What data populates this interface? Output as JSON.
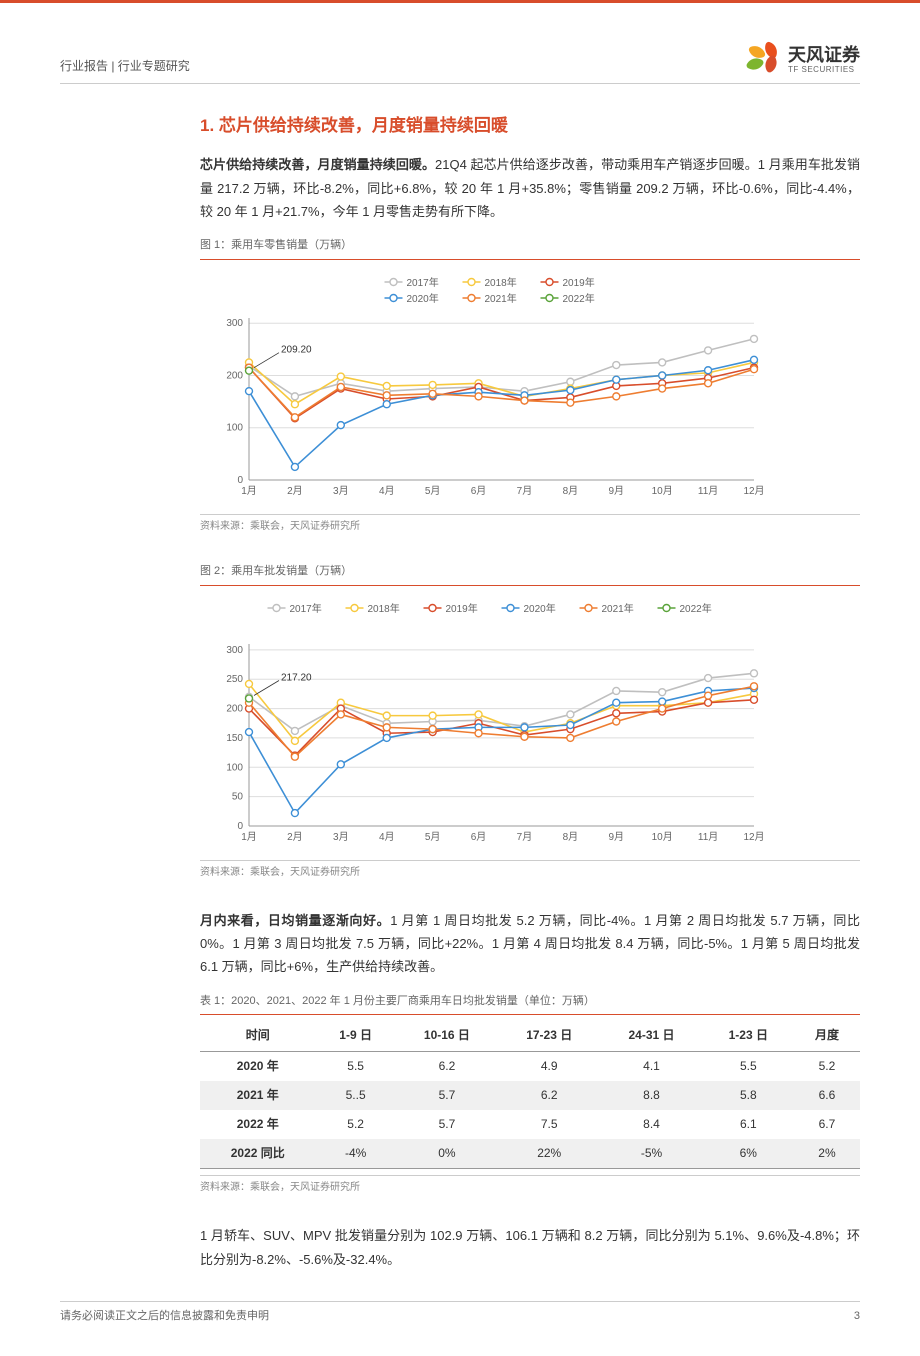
{
  "header": {
    "breadcrumb": "行业报告 | 行业专题研究",
    "logo_cn": "天风证券",
    "logo_en": "TF SECURITIES"
  },
  "section": {
    "title": "1. 芯片供给持续改善，月度销量持续回暖",
    "para1_bold": "芯片供给持续改善，月度销量持续回暖。",
    "para1_rest": "21Q4 起芯片供给逐步改善，带动乘用车产销逐步回暖。1 月乘用车批发销量 217.2 万辆，环比-8.2%，同比+6.8%，较 20 年 1 月+35.8%；零售销量 209.2 万辆，环比-0.6%，同比-4.4%，较 20 年 1 月+21.7%，今年 1 月零售走势有所下降。",
    "para2_bold": "月内来看，日均销量逐渐向好。",
    "para2_rest": "1 月第 1 周日均批发 5.2 万辆，同比-4%。1 月第 2 周日均批发 5.7 万辆，同比 0%。1 月第 3 周日均批发 7.5 万辆，同比+22%。1 月第 4 周日均批发 8.4 万辆，同比-5%。1 月第 5 周日均批发 6.1 万辆，同比+6%，生产供给持续改善。",
    "para3": "1 月轿车、SUV、MPV 批发销量分别为 102.9 万辆、106.1 万辆和 8.2 万辆，同比分别为 5.1%、9.6%及-4.8%；环比分别为-8.2%、-5.6%及-32.4%。"
  },
  "chart1": {
    "caption": "图 1：乘用车零售销量（万辆）",
    "source": "资料来源：乘联会，天风证券研究所",
    "annotation": "209.20",
    "x_labels": [
      "1月",
      "2月",
      "3月",
      "4月",
      "5月",
      "6月",
      "7月",
      "8月",
      "9月",
      "10月",
      "11月",
      "12月"
    ],
    "y_ticks": [
      0,
      100,
      200,
      300
    ],
    "ylim": [
      0,
      310
    ],
    "legend": [
      "2017年",
      "2018年",
      "2019年",
      "2020年",
      "2021年",
      "2022年"
    ],
    "colors": [
      "#bfbfbf",
      "#f7c93e",
      "#d84d2b",
      "#3d8fd6",
      "#ee7d31",
      "#5aa33a"
    ],
    "series": {
      "2017": [
        218,
        160,
        185,
        170,
        175,
        178,
        170,
        188,
        220,
        225,
        248,
        270
      ],
      "2018": [
        225,
        145,
        198,
        180,
        182,
        185,
        160,
        175,
        192,
        200,
        205,
        225
      ],
      "2019": [
        215,
        118,
        175,
        155,
        160,
        178,
        152,
        158,
        180,
        185,
        195,
        215
      ],
      "2020": [
        170,
        25,
        105,
        145,
        162,
        168,
        162,
        172,
        192,
        200,
        210,
        230
      ],
      "2021": [
        215,
        120,
        178,
        162,
        165,
        160,
        152,
        148,
        160,
        175,
        185,
        212
      ],
      "2022": [
        209.2
      ]
    }
  },
  "chart2": {
    "caption": "图 2：乘用车批发销量（万辆）",
    "source": "资料来源：乘联会，天风证券研究所",
    "annotation": "217.20",
    "x_labels": [
      "1月",
      "2月",
      "3月",
      "4月",
      "5月",
      "6月",
      "7月",
      "8月",
      "9月",
      "10月",
      "11月",
      "12月"
    ],
    "y_ticks": [
      0,
      50,
      100,
      150,
      200,
      250,
      300
    ],
    "ylim": [
      0,
      310
    ],
    "legend": [
      "2017年",
      "2018年",
      "2019年",
      "2020年",
      "2021年",
      "2022年"
    ],
    "colors": [
      "#bfbfbf",
      "#f7c93e",
      "#d84d2b",
      "#3d8fd6",
      "#ee7d31",
      "#5aa33a"
    ],
    "series": {
      "2017": [
        220,
        162,
        205,
        175,
        178,
        180,
        170,
        190,
        230,
        228,
        252,
        260
      ],
      "2018": [
        242,
        145,
        210,
        188,
        188,
        190,
        160,
        175,
        205,
        205,
        210,
        225
      ],
      "2019": [
        200,
        120,
        200,
        158,
        160,
        175,
        155,
        165,
        192,
        195,
        210,
        215
      ],
      "2020": [
        160,
        22,
        105,
        150,
        165,
        168,
        168,
        172,
        210,
        212,
        230,
        235
      ],
      "2021": [
        210,
        118,
        190,
        168,
        165,
        158,
        152,
        150,
        178,
        200,
        222,
        238
      ],
      "2022": [
        217.2
      ]
    }
  },
  "table1": {
    "caption": "表 1：2020、2021、2022 年 1 月份主要厂商乘用车日均批发销量（单位：万辆）",
    "source": "资料来源：乘联会，天风证券研究所",
    "columns": [
      "时间",
      "1-9 日",
      "10-16 日",
      "17-23 日",
      "24-31 日",
      "1-23 日",
      "月度"
    ],
    "rows": [
      [
        "2020 年",
        "5.5",
        "6.2",
        "4.9",
        "4.1",
        "5.5",
        "5.2"
      ],
      [
        "2021 年",
        "5..5",
        "5.7",
        "6.2",
        "8.8",
        "5.8",
        "6.6"
      ],
      [
        "2022 年",
        "5.2",
        "5.7",
        "7.5",
        "8.4",
        "6.1",
        "6.7"
      ],
      [
        "2022 同比",
        "-4%",
        "0%",
        "22%",
        "-5%",
        "6%",
        "2%"
      ]
    ],
    "shaded_rows": [
      1,
      3
    ]
  },
  "footer": {
    "disclaimer": "请务必阅读正文之后的信息披露和免责申明",
    "page": "3"
  }
}
